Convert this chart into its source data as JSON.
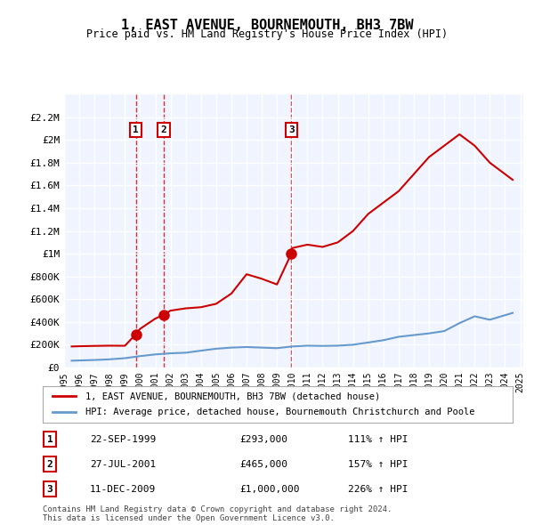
{
  "title": "1, EAST AVENUE, BOURNEMOUTH, BH3 7BW",
  "subtitle": "Price paid vs. HM Land Registry's House Price Index (HPI)",
  "property_label": "1, EAST AVENUE, BOURNEMOUTH, BH3 7BW (detached house)",
  "hpi_label": "HPI: Average price, detached house, Bournemouth Christchurch and Poole",
  "footer1": "Contains HM Land Registry data © Crown copyright and database right 2024.",
  "footer2": "This data is licensed under the Open Government Licence v3.0.",
  "property_color": "#cc0000",
  "hpi_color": "#6699cc",
  "dashed_vline_color": "#cc0000",
  "sale_events": [
    {
      "label": "1",
      "date": "22-SEP-1999",
      "price": "£293,000",
      "hpi_pct": "111% ↑ HPI",
      "x_year": 1999.72
    },
    {
      "label": "2",
      "date": "27-JUL-2001",
      "price": "£465,000",
      "hpi_pct": "157% ↑ HPI",
      "x_year": 2001.56
    },
    {
      "label": "3",
      "date": "11-DEC-2009",
      "price": "£1,000,000",
      "hpi_pct": "226% ↑ HPI",
      "x_year": 2009.94
    }
  ],
  "property_line": {
    "x": [
      1995.5,
      1996,
      1997,
      1998,
      1999,
      1999.72,
      2000,
      2001,
      2001.56,
      2002,
      2003,
      2004,
      2005,
      2006,
      2007,
      2008,
      2009,
      2009.94,
      2010,
      2011,
      2012,
      2013,
      2014,
      2015,
      2016,
      2017,
      2018,
      2019,
      2020,
      2021,
      2022,
      2023,
      2024,
      2024.5
    ],
    "y": [
      185000,
      187000,
      190000,
      192000,
      191000,
      293000,
      340000,
      430000,
      465000,
      500000,
      520000,
      530000,
      560000,
      650000,
      820000,
      780000,
      730000,
      1000000,
      1050000,
      1080000,
      1060000,
      1100000,
      1200000,
      1350000,
      1450000,
      1550000,
      1700000,
      1850000,
      1950000,
      2050000,
      1950000,
      1800000,
      1700000,
      1650000
    ]
  },
  "hpi_line": {
    "x": [
      1995.5,
      1996,
      1997,
      1998,
      1999,
      2000,
      2001,
      2002,
      2003,
      2004,
      2005,
      2006,
      2007,
      2008,
      2009,
      2010,
      2011,
      2012,
      2013,
      2014,
      2015,
      2016,
      2017,
      2018,
      2019,
      2020,
      2021,
      2022,
      2023,
      2024,
      2024.5
    ],
    "y": [
      60000,
      62000,
      66000,
      72000,
      82000,
      100000,
      115000,
      125000,
      130000,
      148000,
      165000,
      175000,
      180000,
      175000,
      170000,
      185000,
      192000,
      190000,
      192000,
      200000,
      220000,
      240000,
      270000,
      285000,
      300000,
      320000,
      390000,
      450000,
      420000,
      460000,
      480000
    ]
  },
  "yticks": [
    0,
    200000,
    400000,
    600000,
    800000,
    1000000,
    1200000,
    1400000,
    1600000,
    1800000,
    2000000,
    2200000
  ],
  "ytick_labels": [
    "£0",
    "£200K",
    "£400K",
    "£600K",
    "£800K",
    "£1M",
    "£1.2M",
    "£1.4M",
    "£1.6M",
    "£1.8M",
    "£2M",
    "£2.2M"
  ],
  "xlim": [
    1995.3,
    2025.2
  ],
  "ylim": [
    0,
    2400000
  ],
  "xtick_years": [
    1995,
    1996,
    1997,
    1998,
    1999,
    2000,
    2001,
    2002,
    2003,
    2004,
    2005,
    2006,
    2007,
    2008,
    2009,
    2010,
    2011,
    2012,
    2013,
    2014,
    2015,
    2016,
    2017,
    2018,
    2019,
    2020,
    2021,
    2022,
    2023,
    2024,
    2025
  ],
  "background_color": "#ffffff",
  "plot_bg_color": "#f0f4ff",
  "grid_color": "#ffffff",
  "sale_dot_color": "#cc0000",
  "sale_dot_size": 8,
  "label_box_color": "#ffffff",
  "label_box_edge": "#cc0000"
}
